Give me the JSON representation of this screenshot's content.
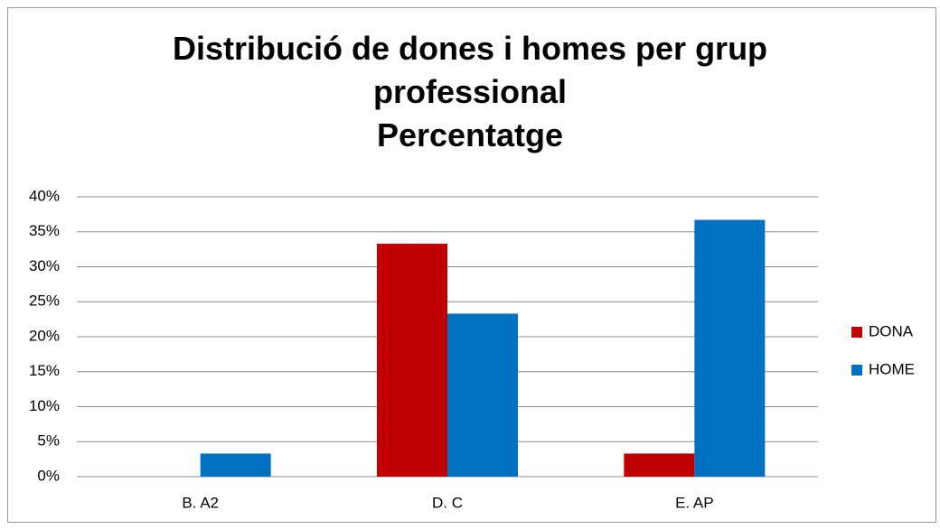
{
  "chart_data": {
    "type": "bar",
    "title": "Distribució de dones i homes per grup professional",
    "subtitle": "Percentatge",
    "categories": [
      "B. A2",
      "D. C",
      "E. AP"
    ],
    "series": [
      {
        "name": "DONA",
        "color": "#c00000",
        "values": [
          0,
          33.3,
          3.3
        ]
      },
      {
        "name": "HOME",
        "color": "#0070c0",
        "values": [
          3.3,
          23.3,
          36.7
        ]
      }
    ],
    "ylim": [
      0,
      40
    ],
    "yticks": [
      {
        "value": 0,
        "label": "0%"
      },
      {
        "value": 5,
        "label": "5%"
      },
      {
        "value": 10,
        "label": "10%"
      },
      {
        "value": 15,
        "label": "15%"
      },
      {
        "value": 20,
        "label": "20%"
      },
      {
        "value": 25,
        "label": "25%"
      },
      {
        "value": 30,
        "label": "30%"
      },
      {
        "value": 35,
        "label": "35%"
      },
      {
        "value": 40,
        "label": "40%"
      }
    ],
    "grid": true,
    "legend": "right"
  }
}
